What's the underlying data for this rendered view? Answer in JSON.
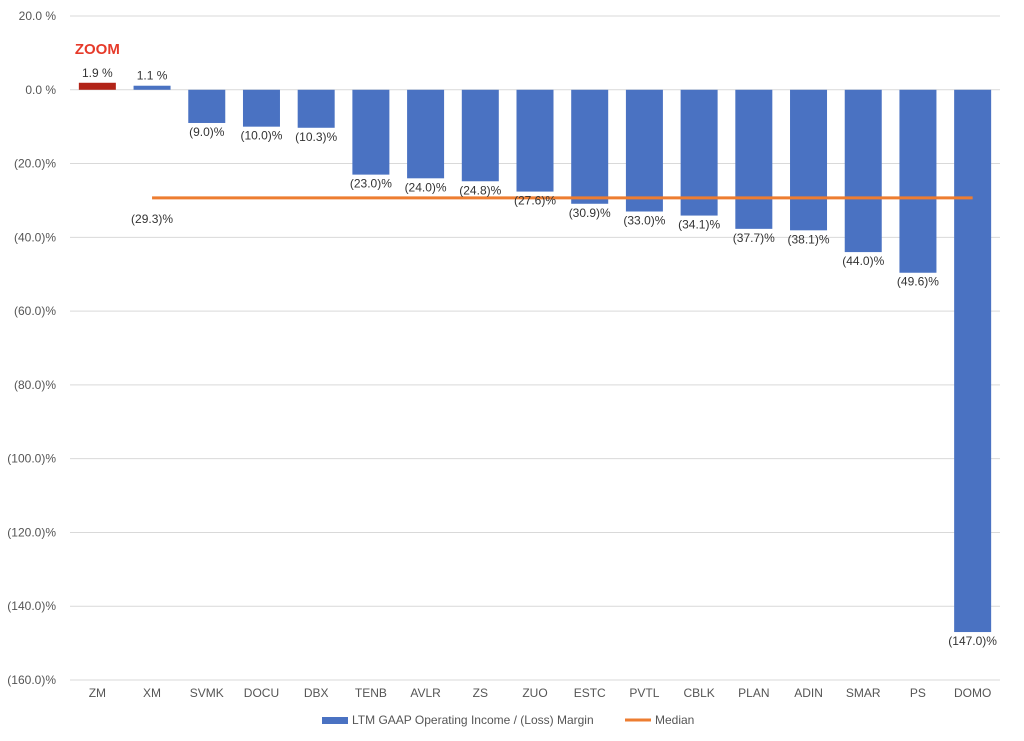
{
  "chart_data": {
    "type": "bar",
    "categories": [
      "ZM",
      "XM",
      "SVMK",
      "DOCU",
      "DBX",
      "TENB",
      "AVLR",
      "ZS",
      "ZUO",
      "ESTC",
      "PVTL",
      "CBLK",
      "PLAN",
      "ADIN",
      "SMAR",
      "PS",
      "DOMO"
    ],
    "values": [
      1.9,
      1.1,
      -9.0,
      -10.0,
      -10.3,
      -23.0,
      -24.0,
      -24.8,
      -27.6,
      -30.9,
      -33.0,
      -34.1,
      -37.7,
      -38.1,
      -44.0,
      -49.6,
      -147.0
    ],
    "data_labels": [
      "1.9 %",
      "1.1 %",
      "(9.0)%",
      "(10.0)%",
      "(10.3)%",
      "(23.0)%",
      "(24.0)%",
      "(24.8)%",
      "(27.6)%",
      "(30.9)%",
      "(33.0)%",
      "(34.1)%",
      "(37.7)%",
      "(38.1)%",
      "(44.0)%",
      "(49.6)%",
      "(147.0)%"
    ],
    "median": {
      "name": "Median",
      "value": -29.3,
      "label": "(29.3)%"
    },
    "series_name": "LTM GAAP Operating Income / (Loss) Margin",
    "highlight": {
      "category": "ZM",
      "label": "ZOOM",
      "color": "#b22418"
    },
    "yticks": [
      20,
      0,
      -20,
      -40,
      -60,
      -80,
      -100,
      -120,
      -140,
      -160
    ],
    "ytick_labels": [
      "20.0 %",
      "0.0 %",
      "(20.0)%",
      "(40.0)%",
      "(60.0)%",
      "(80.0)%",
      "(100.0)%",
      "(120.0)%",
      "(140.0)%",
      "(160.0)%"
    ],
    "ylim": [
      -160,
      20
    ],
    "grid": true,
    "legend_position": "bottom",
    "colors": {
      "bar": "#4a72c2",
      "median": "#ed7d31",
      "grid": "#d9d9d9",
      "callout": "#e63a2a"
    }
  }
}
